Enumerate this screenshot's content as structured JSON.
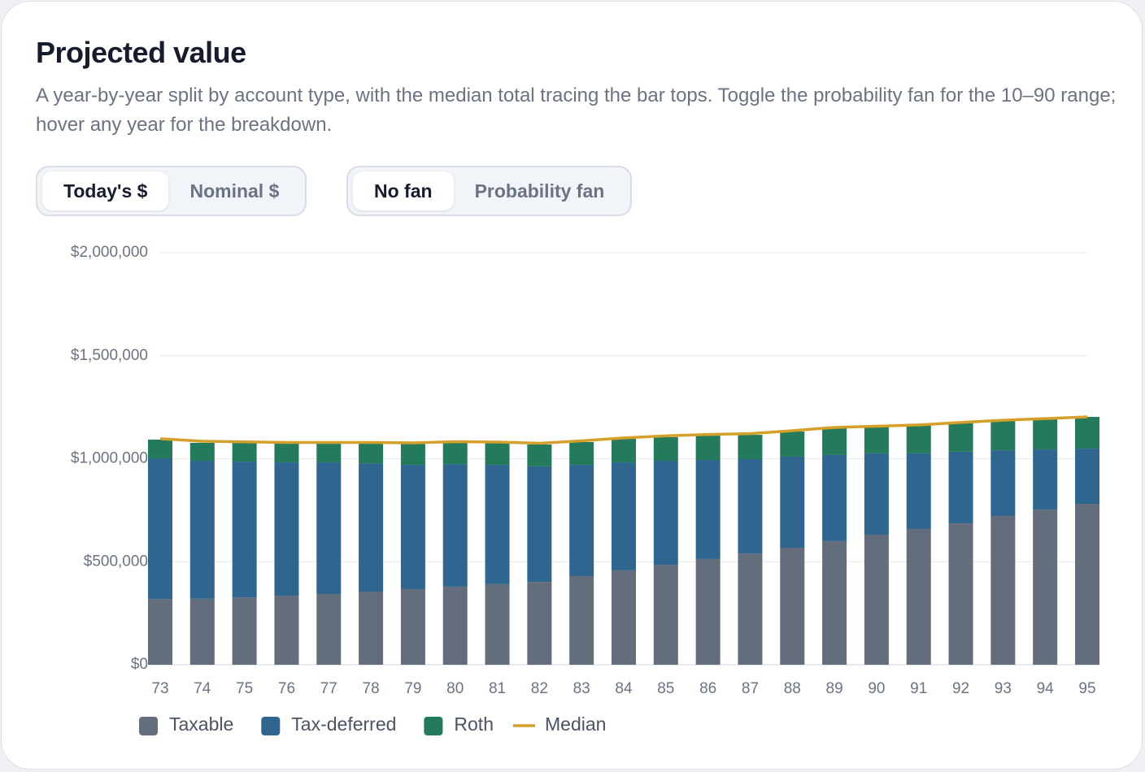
{
  "header": {
    "title": "Projected value",
    "description": "A year-by-year split by account type, with the median total tracing the bar tops. Toggle the probability fan for the 10–90 range; hover any year for the breakdown."
  },
  "toggles": [
    {
      "options": [
        "Today's $",
        "Nominal $"
      ],
      "active": 0
    },
    {
      "options": [
        "No fan",
        "Probability fan"
      ],
      "active": 0
    }
  ],
  "chart_data": {
    "type": "bar",
    "stacked": true,
    "categories": [
      "73",
      "74",
      "75",
      "76",
      "77",
      "78",
      "79",
      "80",
      "81",
      "82",
      "83",
      "84",
      "85",
      "86",
      "87",
      "88",
      "89",
      "90",
      "91",
      "92",
      "93",
      "94",
      "95"
    ],
    "series": [
      {
        "name": "Taxable",
        "color": "#636d7c",
        "values": [
          319000,
          320000,
          327000,
          335000,
          343000,
          355000,
          367000,
          379000,
          391000,
          402000,
          430000,
          458000,
          485000,
          513000,
          540000,
          568000,
          600000,
          631000,
          659000,
          686000,
          722000,
          753000,
          781000
        ]
      },
      {
        "name": "Tax-deferred",
        "color": "#2f6690",
        "values": [
          683000,
          670000,
          659000,
          647000,
          639000,
          623000,
          603000,
          595000,
          579000,
          561000,
          540000,
          524000,
          505000,
          481000,
          458000,
          442000,
          418000,
          395000,
          367000,
          348000,
          319000,
          292000,
          268000
        ]
      },
      {
        "name": "Roth",
        "color": "#237b5c",
        "values": [
          91000,
          87000,
          91000,
          95000,
          95000,
          99000,
          103000,
          107000,
          107000,
          106000,
          111000,
          115000,
          115000,
          118000,
          118000,
          122000,
          130000,
          130000,
          138000,
          142000,
          146000,
          150000,
          154000
        ]
      },
      {
        "name": "Median",
        "type": "line",
        "color": "#d4a02a",
        "values": [
          1097000,
          1085000,
          1082000,
          1079000,
          1079000,
          1079000,
          1077000,
          1083000,
          1081000,
          1075000,
          1087000,
          1101000,
          1111000,
          1118000,
          1122000,
          1136000,
          1152000,
          1158000,
          1164000,
          1176000,
          1187000,
          1195000,
          1203000
        ]
      }
    ],
    "ylim": [
      0,
      2000000
    ],
    "yticks": [
      {
        "value": 0,
        "label": "$0"
      },
      {
        "value": 500000,
        "label": "$500,000"
      },
      {
        "value": 1000000,
        "label": "$1,000,000"
      },
      {
        "value": 1500000,
        "label": "$1,500,000"
      },
      {
        "value": 2000000,
        "label": "$2,000,000"
      }
    ],
    "grid": true
  }
}
